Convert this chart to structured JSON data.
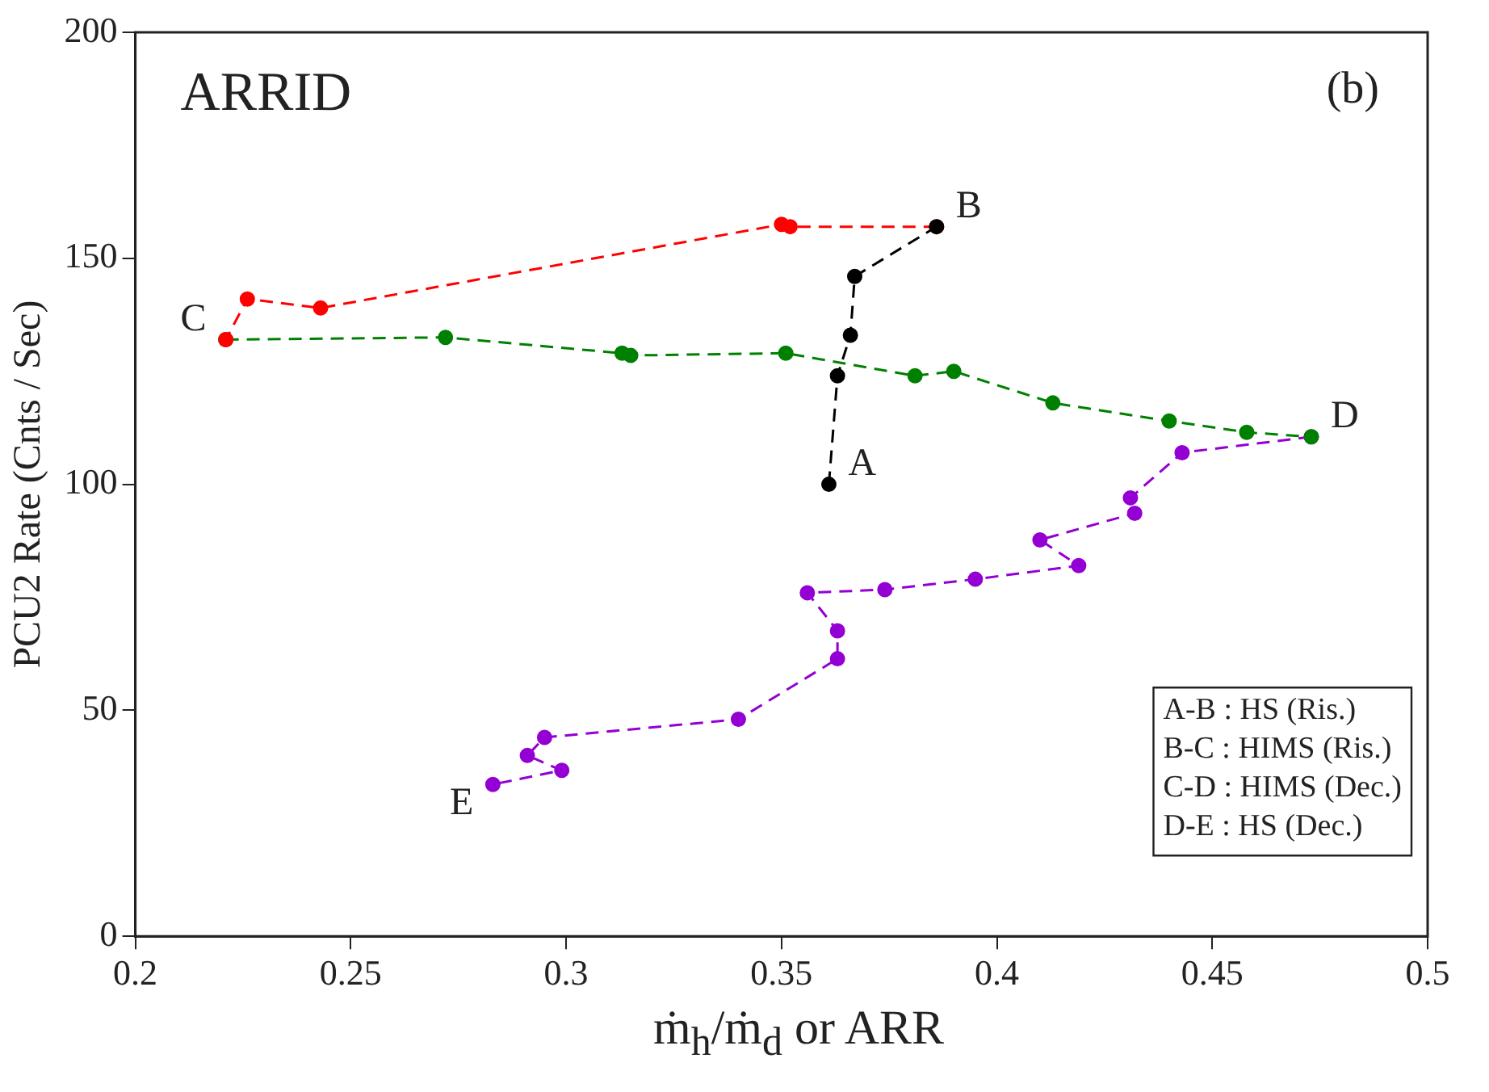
{
  "chart_data": {
    "type": "line",
    "title": "ARRID",
    "xlabel": "ṁ$_{h}$/ṁ$_{d}$ or ARR",
    "ylabel": "PCU2 Rate (Cnts / Sec)",
    "xlim": [
      0.2,
      0.5
    ],
    "xticks": [
      0.2,
      0.25,
      0.3,
      0.35,
      0.4,
      0.45,
      0.5
    ],
    "ylim": [
      0,
      200
    ],
    "yticks": [
      0,
      50,
      100,
      150,
      200
    ],
    "grid": false,
    "legend": false,
    "marker": "circle",
    "line_style": "dashed",
    "series": [
      {
        "color": "#000000",
        "x": [
          0.361,
          0.363,
          0.366,
          0.367,
          0.386
        ],
        "values": [
          100,
          124,
          133,
          146,
          157
        ]
      },
      {
        "color": "#ff0000",
        "x": [
          0.386,
          0.352,
          0.35,
          0.243,
          0.226,
          0.221
        ],
        "values": [
          157,
          157,
          157.5,
          139,
          141,
          132
        ]
      },
      {
        "color": "#008000",
        "x": [
          0.221,
          0.272,
          0.313,
          0.315,
          0.351,
          0.381,
          0.39,
          0.413,
          0.44,
          0.458,
          0.473
        ],
        "values": [
          132,
          132.5,
          129,
          128.5,
          129,
          124,
          125,
          118,
          114,
          111.5,
          110.5
        ]
      },
      {
        "color": "#9400d3",
        "x": [
          0.473,
          0.443,
          0.431,
          0.432,
          0.41,
          0.419,
          0.395,
          0.374,
          0.356,
          0.363,
          0.363,
          0.34,
          0.295,
          0.291,
          0.299,
          0.283
        ],
        "values": [
          110.5,
          107,
          97,
          93.6,
          87.7,
          82,
          79,
          76.7,
          76,
          67.6,
          61.4,
          48,
          44,
          40,
          36.7,
          33.6
        ]
      }
    ],
    "annotations": [
      {
        "text": "A",
        "x": 0.361,
        "y": 100
      },
      {
        "text": "B",
        "x": 0.386,
        "y": 157
      },
      {
        "text": "C",
        "x": 0.221,
        "y": 132
      },
      {
        "text": "D",
        "x": 0.473,
        "y": 110.5
      },
      {
        "text": "E",
        "x": 0.283,
        "y": 33.6
      },
      "(b)",
      "A-B : HS (Ris.)",
      "B-C : HIMS (Ris.)",
      "C-D : HIMS (Dec.)",
      "D-E : HS (Dec.)"
    ]
  }
}
